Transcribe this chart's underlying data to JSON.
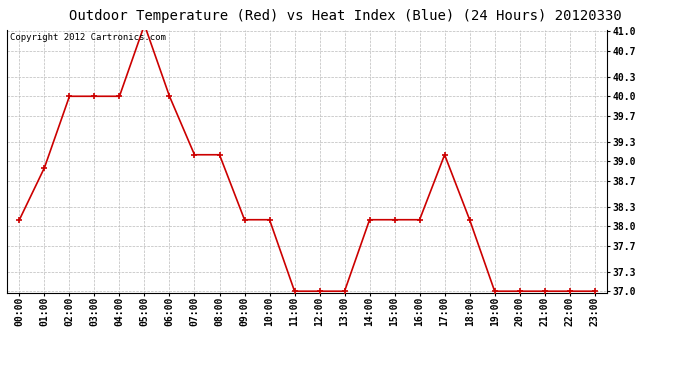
{
  "title": "Outdoor Temperature (Red) vs Heat Index (Blue) (24 Hours) 20120330",
  "copyright_text": "Copyright 2012 Cartronics.com",
  "x_labels": [
    "00:00",
    "01:00",
    "02:00",
    "03:00",
    "04:00",
    "05:00",
    "06:00",
    "07:00",
    "08:00",
    "09:00",
    "10:00",
    "11:00",
    "12:00",
    "13:00",
    "14:00",
    "15:00",
    "16:00",
    "17:00",
    "18:00",
    "19:00",
    "20:00",
    "21:00",
    "22:00",
    "23:00"
  ],
  "temp_red": [
    38.1,
    38.9,
    40.0,
    40.0,
    40.0,
    41.1,
    40.0,
    39.1,
    39.1,
    38.1,
    38.1,
    37.0,
    37.0,
    37.0,
    38.1,
    38.1,
    38.1,
    39.1,
    38.1,
    37.0,
    37.0,
    37.0,
    37.0,
    37.0
  ],
  "heat_blue": [],
  "y_min": 37.0,
  "y_max": 41.0,
  "y_ticks": [
    37.0,
    37.3,
    37.7,
    38.0,
    38.3,
    38.7,
    39.0,
    39.3,
    39.7,
    40.0,
    40.3,
    40.7,
    41.0
  ],
  "line_color_red": "#cc0000",
  "background_color": "#ffffff",
  "plot_bg_color": "#ffffff",
  "grid_color": "#bbbbbb",
  "title_fontsize": 10,
  "tick_fontsize": 7,
  "copyright_fontsize": 6.5
}
